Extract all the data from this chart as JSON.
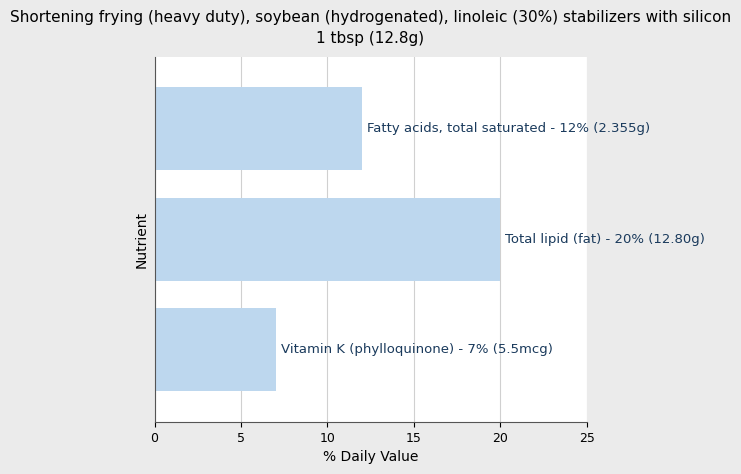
{
  "title_line1": "Shortening frying (heavy duty), soybean (hydrogenated), linoleic (30%) stabilizers with silicon",
  "title_line2": "1 tbsp (12.8g)",
  "bars": [
    {
      "label": "Fatty acids, total saturated - 12% (2.355g)",
      "value": 12
    },
    {
      "label": "Total lipid (fat) - 20% (12.80g)",
      "value": 20
    },
    {
      "label": "Vitamin K (phylloquinone) - 7% (5.5mcg)",
      "value": 7
    }
  ],
  "bar_color": "#bdd7ee",
  "bar_text_color": "#1a3a5c",
  "xlabel": "% Daily Value",
  "ylabel": "Nutrient",
  "xlim": [
    0,
    25
  ],
  "xticks": [
    0,
    5,
    10,
    15,
    20,
    25
  ],
  "background_color": "#ebebeb",
  "plot_bg_color": "#ffffff",
  "title_fontsize": 11,
  "label_fontsize": 9.5,
  "axis_label_fontsize": 10,
  "bar_height": 0.75
}
